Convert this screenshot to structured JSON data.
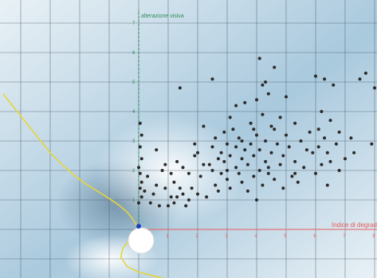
{
  "chart_data": {
    "type": "scatter",
    "title": "",
    "ylabel": "alterazione visiva",
    "xlabel": "Indice di degrado",
    "xlim": [
      -4.6,
      8.2
    ],
    "ylim": [
      -1.7,
      7.8
    ],
    "x_ticks": [
      "0",
      "1",
      "2",
      "3",
      "4",
      "5",
      "6",
      "7",
      "8"
    ],
    "y_ticks": [
      "1",
      "2",
      "3",
      "4",
      "5",
      "6",
      "7"
    ],
    "grid": true,
    "colors": {
      "background_light": "#e9f1f6",
      "background_mid": "#a9c9dd",
      "background_dark": "#6f8ea6",
      "grid": "#3e4f5e",
      "x_axis": "#e85a5a",
      "y_axis": "#2e8b57",
      "curve": "#e6d53a",
      "points": "#2b2b2b",
      "origin_marker": "#1f3fbf",
      "bulb": "#ffffff"
    },
    "points": [
      [
        0.0,
        0.9
      ],
      [
        0.05,
        1.4
      ],
      [
        0.05,
        1.9
      ],
      [
        0.1,
        2.4
      ],
      [
        0.05,
        2.8
      ],
      [
        0.1,
        3.2
      ],
      [
        0.05,
        3.6
      ],
      [
        0.1,
        1.1
      ],
      [
        0.1,
        1.6
      ],
      [
        0.0,
        2.1
      ],
      [
        0.2,
        1.3
      ],
      [
        0.4,
        0.9
      ],
      [
        0.5,
        1.2
      ],
      [
        0.6,
        1.5
      ],
      [
        0.7,
        0.8
      ],
      [
        0.3,
        1.8
      ],
      [
        0.9,
        1.4
      ],
      [
        0.6,
        2.7
      ],
      [
        0.9,
        2.2
      ],
      [
        1.1,
        1.1
      ],
      [
        1.0,
        0.8
      ],
      [
        1.2,
        1.6
      ],
      [
        1.3,
        1.1
      ],
      [
        1.4,
        1.4
      ],
      [
        1.2,
        0.9
      ],
      [
        1.3,
        2.3
      ],
      [
        1.5,
        1.2
      ],
      [
        1.6,
        0.8
      ],
      [
        1.7,
        1.0
      ],
      [
        1.7,
        1.9
      ],
      [
        1.8,
        1.4
      ],
      [
        1.9,
        2.5
      ],
      [
        1.9,
        2.9
      ],
      [
        2.0,
        1.2
      ],
      [
        2.1,
        1.8
      ],
      [
        2.2,
        3.5
      ],
      [
        2.3,
        1.1
      ],
      [
        2.4,
        2.2
      ],
      [
        2.5,
        2.0
      ],
      [
        2.5,
        2.8
      ],
      [
        2.6,
        1.5
      ],
      [
        2.6,
        3.1
      ],
      [
        2.7,
        1.3
      ],
      [
        2.8,
        2.6
      ],
      [
        2.8,
        1.9
      ],
      [
        2.9,
        3.3
      ],
      [
        2.9,
        2.3
      ],
      [
        3.0,
        1.7
      ],
      [
        3.0,
        2.9
      ],
      [
        3.1,
        3.8
      ],
      [
        3.1,
        2.5
      ],
      [
        3.1,
        1.4
      ],
      [
        3.2,
        3.4
      ],
      [
        3.3,
        2.1
      ],
      [
        3.3,
        2.8
      ],
      [
        3.4,
        1.9
      ],
      [
        3.4,
        3.1
      ],
      [
        3.5,
        2.4
      ],
      [
        3.5,
        1.6
      ],
      [
        3.6,
        2.7
      ],
      [
        3.6,
        4.3
      ],
      [
        3.7,
        1.3
      ],
      [
        3.7,
        2.2
      ],
      [
        3.8,
        3.6
      ],
      [
        3.8,
        2.9
      ],
      [
        3.9,
        1.8
      ],
      [
        3.9,
        2.5
      ],
      [
        4.0,
        1.0
      ],
      [
        4.0,
        3.2
      ],
      [
        4.0,
        4.4
      ],
      [
        4.1,
        2.0
      ],
      [
        4.1,
        5.8
      ],
      [
        4.1,
        2.7
      ],
      [
        4.2,
        3.9
      ],
      [
        4.2,
        1.5
      ],
      [
        4.3,
        2.3
      ],
      [
        4.3,
        5.0
      ],
      [
        4.3,
        3.0
      ],
      [
        4.4,
        1.9
      ],
      [
        4.4,
        4.6
      ],
      [
        4.5,
        2.6
      ],
      [
        4.5,
        3.5
      ],
      [
        4.6,
        1.7
      ],
      [
        4.6,
        5.5
      ],
      [
        4.7,
        2.9
      ],
      [
        4.8,
        2.2
      ],
      [
        4.8,
        3.8
      ],
      [
        4.9,
        1.4
      ],
      [
        4.9,
        2.5
      ],
      [
        5.0,
        3.2
      ],
      [
        5.1,
        2.8
      ],
      [
        5.2,
        1.8
      ],
      [
        5.3,
        3.6
      ],
      [
        5.3,
        2.3
      ],
      [
        5.4,
        1.6
      ],
      [
        5.5,
        3.0
      ],
      [
        5.6,
        2.1
      ],
      [
        5.8,
        3.3
      ],
      [
        5.9,
        2.6
      ],
      [
        6.0,
        1.9
      ],
      [
        6.0,
        5.2
      ],
      [
        6.1,
        3.4
      ],
      [
        6.1,
        2.8
      ],
      [
        6.2,
        4.0
      ],
      [
        6.2,
        2.2
      ],
      [
        6.3,
        5.1
      ],
      [
        6.3,
        3.1
      ],
      [
        6.4,
        1.5
      ],
      [
        6.4,
        2.6
      ],
      [
        6.5,
        3.7
      ],
      [
        6.6,
        4.9
      ],
      [
        6.7,
        2.9
      ],
      [
        6.8,
        3.3
      ],
      [
        7.0,
        2.4
      ],
      [
        7.2,
        3.1
      ],
      [
        7.5,
        5.1
      ],
      [
        7.7,
        5.3
      ],
      [
        7.9,
        2.9
      ],
      [
        8.0,
        4.8
      ],
      [
        4.2,
        4.9
      ],
      [
        2.5,
        5.1
      ],
      [
        1.4,
        4.8
      ],
      [
        3.3,
        4.2
      ],
      [
        4.6,
        3.4
      ],
      [
        5.0,
        4.5
      ],
      [
        3.0,
        2.0
      ],
      [
        2.0,
        2.6
      ],
      [
        1.5,
        2.1
      ],
      [
        0.8,
        2.0
      ],
      [
        5.7,
        2.7
      ],
      [
        6.8,
        2.0
      ],
      [
        7.3,
        2.6
      ],
      [
        3.5,
        3.0
      ],
      [
        2.2,
        2.2
      ],
      [
        4.4,
        2.1
      ],
      [
        5.3,
        1.9
      ],
      [
        1.1,
        1.9
      ],
      [
        2.7,
        2.4
      ],
      [
        3.9,
        3.4
      ],
      [
        6.5,
        2.3
      ]
    ],
    "curve": [
      [
        -4.6,
        4.6
      ],
      [
        -4.2,
        4.1
      ],
      [
        -3.8,
        3.6
      ],
      [
        -3.4,
        3.1
      ],
      [
        -3.0,
        2.6
      ],
      [
        -2.6,
        2.2
      ],
      [
        -2.2,
        1.85
      ],
      [
        -1.8,
        1.55
      ],
      [
        -1.4,
        1.3
      ],
      [
        -1.0,
        1.05
      ],
      [
        -0.7,
        0.85
      ],
      [
        -0.4,
        0.6
      ],
      [
        -0.2,
        0.35
      ],
      [
        -0.05,
        0.1
      ],
      [
        0.0,
        -0.1
      ],
      [
        -0.3,
        -0.35
      ],
      [
        -0.55,
        -0.65
      ],
      [
        -0.6,
        -0.95
      ],
      [
        -0.4,
        -1.25
      ],
      [
        0.0,
        -1.45
      ],
      [
        0.6,
        -1.6
      ],
      [
        1.2,
        -1.75
      ]
    ]
  }
}
